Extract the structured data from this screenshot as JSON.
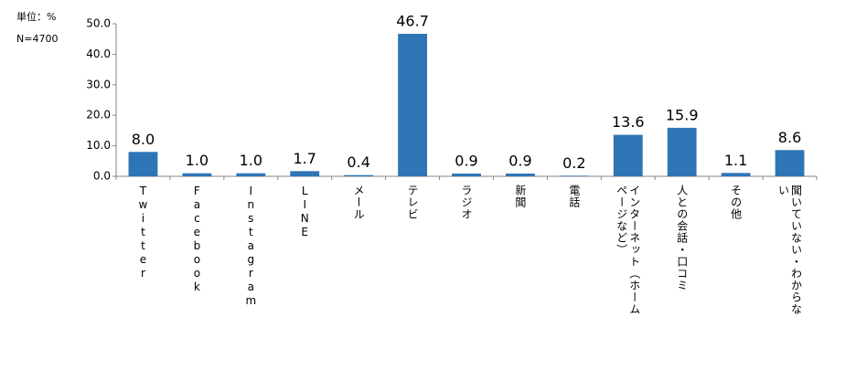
{
  "chart_data": {
    "type": "bar",
    "unit_note": "単位：%",
    "sample_note": "N=4700",
    "categories": [
      "Twitter",
      "Facebook",
      "Instagram",
      "LINE",
      "メール",
      "テレビ",
      "ラジオ",
      "新聞",
      "電話",
      "インターネット（ホームページなど）",
      "人との会話・口コミ",
      "その他",
      "聞いていない・わからない"
    ],
    "values": [
      8.0,
      1.0,
      1.0,
      1.7,
      0.4,
      46.7,
      0.9,
      0.9,
      0.2,
      13.6,
      15.9,
      1.1,
      8.6
    ],
    "value_labels": [
      "8.0",
      "1.0",
      "1.0",
      "1.7",
      "0.4",
      "46.7",
      "0.9",
      "0.9",
      "0.2",
      "13.6",
      "15.9",
      "1.1",
      "8.6"
    ],
    "color": "#2e75b6",
    "ylim": [
      0,
      50
    ],
    "yticks": [
      {
        "value": 0,
        "label": "0.0"
      },
      {
        "value": 10,
        "label": "10.0"
      },
      {
        "value": 20,
        "label": "20.0"
      },
      {
        "value": 30,
        "label": "30.0"
      },
      {
        "value": 40,
        "label": "40.0"
      },
      {
        "value": 50,
        "label": "50.0"
      }
    ]
  }
}
